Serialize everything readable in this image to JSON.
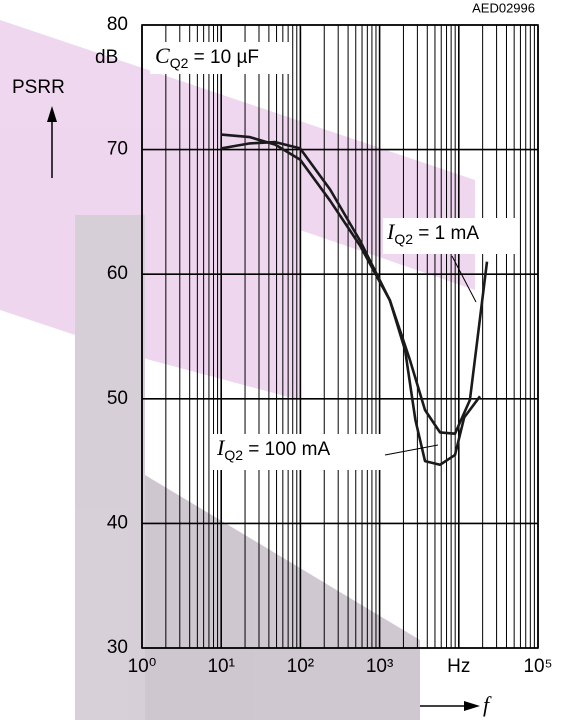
{
  "chart_data": {
    "type": "line",
    "code": "AED02996",
    "y_label": "PSRR",
    "y_unit": "dB",
    "x_label": "f",
    "xscale": "log",
    "grid": true,
    "minor_grid": true,
    "xlim": [
      1,
      100000
    ],
    "xticks": [
      {
        "value": 1,
        "label": "10⁰"
      },
      {
        "value": 10,
        "label": "10¹"
      },
      {
        "value": 100,
        "label": "10²"
      },
      {
        "value": 1000,
        "label": "10³"
      },
      {
        "value": 10000,
        "label": "Hz"
      },
      {
        "value": 100000,
        "label": "10⁵"
      }
    ],
    "ylim": [
      30,
      80
    ],
    "yticks": [
      30,
      40,
      50,
      60,
      70,
      80
    ],
    "annotations": [
      {
        "symbol": "C",
        "subscript": "Q2",
        "text": " = 10 µF"
      },
      {
        "symbol": "I",
        "subscript": "Q2",
        "text": " = 1 mA"
      },
      {
        "symbol": "I",
        "subscript": "Q2",
        "text": " = 100 mA"
      }
    ],
    "series": [
      {
        "color": "#1a1a1a",
        "x": [
          10,
          23,
          48,
          99,
          237,
          566,
          1350,
          2420,
          3740,
          5790,
          8950,
          13800,
          22700
        ],
        "values": [
          70.1,
          70.5,
          70.6,
          70.1,
          66.8,
          62.7,
          57.9,
          53.1,
          49.1,
          47.3,
          47.2,
          49.9,
          61.0
        ]
      },
      {
        "color": "#1a1a1a",
        "x": [
          10,
          23,
          48,
          99,
          237,
          566,
          1350,
          2100,
          2830,
          3740,
          5790,
          8950,
          11700,
          18500
        ],
        "values": [
          71.2,
          71.0,
          70.4,
          69.2,
          65.9,
          62.3,
          57.9,
          53.9,
          48.3,
          45.0,
          44.7,
          45.5,
          48.5,
          50.2
        ]
      }
    ]
  }
}
